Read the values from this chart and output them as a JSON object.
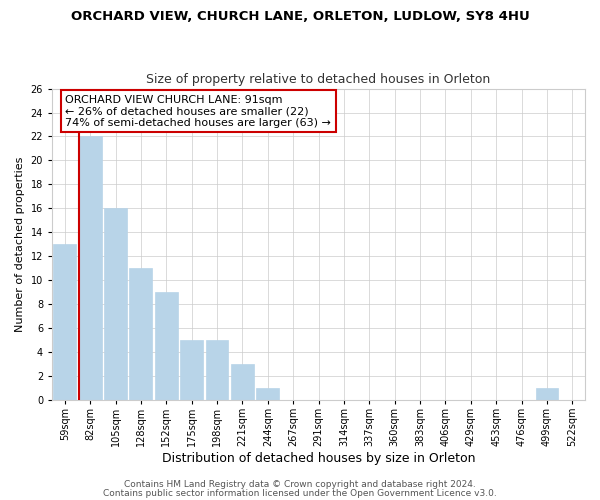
{
  "title": "ORCHARD VIEW, CHURCH LANE, ORLETON, LUDLOW, SY8 4HU",
  "subtitle": "Size of property relative to detached houses in Orleton",
  "xlabel": "Distribution of detached houses by size in Orleton",
  "ylabel": "Number of detached properties",
  "bin_labels": [
    "59sqm",
    "82sqm",
    "105sqm",
    "128sqm",
    "152sqm",
    "175sqm",
    "198sqm",
    "221sqm",
    "244sqm",
    "267sqm",
    "291sqm",
    "314sqm",
    "337sqm",
    "360sqm",
    "383sqm",
    "406sqm",
    "429sqm",
    "453sqm",
    "476sqm",
    "499sqm",
    "522sqm"
  ],
  "bar_heights": [
    13,
    22,
    16,
    11,
    9,
    5,
    5,
    3,
    1,
    0,
    0,
    0,
    0,
    0,
    0,
    0,
    0,
    0,
    0,
    1,
    0
  ],
  "bar_color": "#b8d4e8",
  "vline_x": 1.5,
  "vline_color": "#cc0000",
  "ylim": [
    0,
    26
  ],
  "yticks": [
    0,
    2,
    4,
    6,
    8,
    10,
    12,
    14,
    16,
    18,
    20,
    22,
    24,
    26
  ],
  "annotation_line1": "ORCHARD VIEW CHURCH LANE: 91sqm",
  "annotation_line2": "← 26% of detached houses are smaller (22)",
  "annotation_line3": "74% of semi-detached houses are larger (63) →",
  "footer1": "Contains HM Land Registry data © Crown copyright and database right 2024.",
  "footer2": "Contains public sector information licensed under the Open Government Licence v3.0.",
  "title_fontsize": 9.5,
  "subtitle_fontsize": 9,
  "xlabel_fontsize": 9,
  "ylabel_fontsize": 8,
  "annotation_fontsize": 8,
  "tick_fontsize": 7,
  "footer_fontsize": 6.5
}
